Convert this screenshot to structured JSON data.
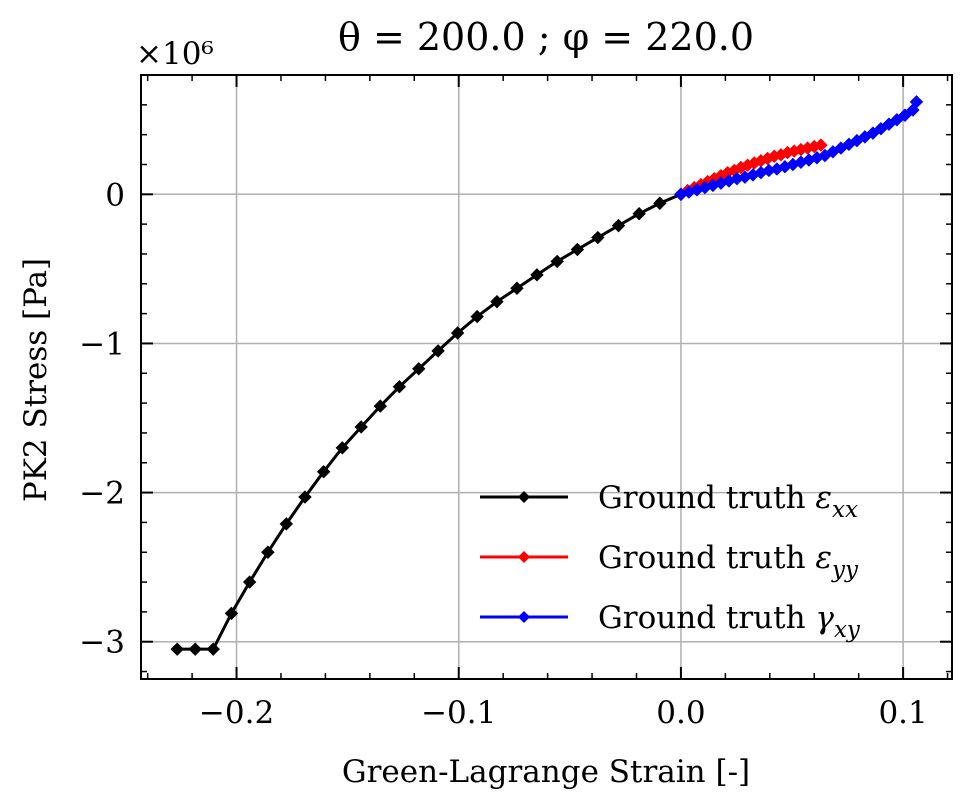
{
  "chart_data": {
    "type": "line",
    "title": "θ = 200.0 ; φ = 220.0",
    "xlabel": "Green-Lagrange Strain [-]",
    "ylabel": "PK2 Stress [Pa]",
    "y_offset_label": "×10⁶",
    "y_multiplier": 1000000,
    "xlim": [
      -0.243,
      0.122
    ],
    "ylim": [
      -3.25,
      0.8
    ],
    "xticks": [
      -0.2,
      -0.1,
      0.0,
      0.1
    ],
    "xtick_labels": [
      "−0.2",
      "−0.1",
      "0.0",
      "0.1"
    ],
    "yticks": [
      0,
      -1,
      -2,
      -3
    ],
    "ytick_labels": [
      "0",
      "−1",
      "−2",
      "−3"
    ],
    "grid": true,
    "legend_position": "lower-right",
    "series": [
      {
        "name": "Ground truth εxx",
        "legend_base": "Ground truth ",
        "legend_symbol": "ε",
        "legend_sub": "xx",
        "color": "#000000",
        "x": [
          0.0,
          -0.0095,
          -0.0188,
          -0.0281,
          -0.0374,
          -0.0466,
          -0.0557,
          -0.0648,
          -0.0738,
          -0.0828,
          -0.0917,
          -0.1005,
          -0.1093,
          -0.118,
          -0.1267,
          -0.1353,
          -0.1439,
          -0.1524,
          -0.1608,
          -0.1692,
          -0.1776,
          -0.1859,
          -0.1941,
          -0.2023,
          -0.2105,
          -0.2186,
          -0.2267
        ],
        "y": [
          0.0,
          -0.06,
          -0.13,
          -0.21,
          -0.29,
          -0.37,
          -0.45,
          -0.54,
          -0.63,
          -0.72,
          -0.82,
          -0.93,
          -1.05,
          -1.17,
          -1.29,
          -1.42,
          -1.56,
          -1.7,
          -1.86,
          -2.03,
          -2.21,
          -2.4,
          -2.6,
          -2.81,
          -3.05,
          -3.05,
          -3.05
        ]
      },
      {
        "name": "Ground truth εyy",
        "legend_base": "Ground truth ",
        "legend_symbol": "ε",
        "legend_sub": "yy",
        "color": "#ff0000",
        "x": [
          0.0,
          0.003,
          0.006,
          0.009,
          0.012,
          0.015,
          0.018,
          0.021,
          0.024,
          0.027,
          0.03,
          0.033,
          0.036,
          0.039,
          0.042,
          0.045,
          0.048,
          0.051,
          0.054,
          0.057,
          0.06,
          0.063
        ],
        "y": [
          0.0,
          0.025,
          0.045,
          0.065,
          0.085,
          0.105,
          0.125,
          0.145,
          0.16,
          0.18,
          0.195,
          0.21,
          0.225,
          0.24,
          0.255,
          0.265,
          0.28,
          0.29,
          0.3,
          0.31,
          0.32,
          0.33
        ]
      },
      {
        "name": "Ground truth γxy",
        "legend_base": "Ground truth ",
        "legend_symbol": "γ",
        "legend_sub": "xy",
        "color": "#0000ff",
        "x": [
          0.0,
          0.0036,
          0.0072,
          0.0108,
          0.0144,
          0.018,
          0.0216,
          0.0252,
          0.0288,
          0.0324,
          0.036,
          0.0396,
          0.0432,
          0.0468,
          0.0504,
          0.054,
          0.0576,
          0.0612,
          0.0648,
          0.0684,
          0.072,
          0.0756,
          0.0792,
          0.0828,
          0.0864,
          0.09,
          0.0936,
          0.0972,
          0.1008,
          0.1044,
          0.106
        ],
        "y": [
          0.0,
          0.015,
          0.03,
          0.045,
          0.06,
          0.075,
          0.09,
          0.105,
          0.115,
          0.13,
          0.145,
          0.16,
          0.17,
          0.185,
          0.2,
          0.215,
          0.23,
          0.245,
          0.26,
          0.285,
          0.31,
          0.335,
          0.36,
          0.385,
          0.41,
          0.44,
          0.47,
          0.5,
          0.53,
          0.565,
          0.62
        ]
      }
    ]
  }
}
